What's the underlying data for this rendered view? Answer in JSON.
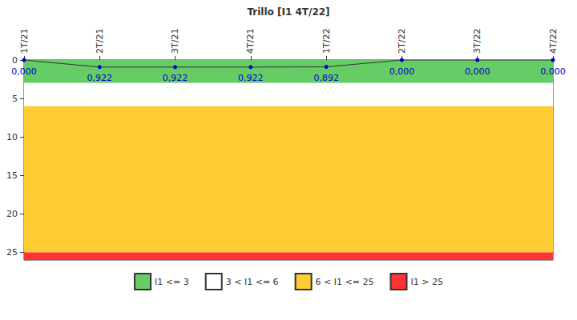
{
  "chart_data": {
    "type": "line",
    "title": "Trillo [I1 4T/22]",
    "categories": [
      "1T/21",
      "2T/21",
      "3T/21",
      "4T/21",
      "1T/22",
      "2T/22",
      "3T/22",
      "4T/22"
    ],
    "values": [
      0.0,
      0.922,
      0.922,
      0.922,
      0.892,
      0.0,
      0.0,
      0.0
    ],
    "value_labels": [
      "0,000",
      "0,922",
      "0,922",
      "0,922",
      "0,892",
      "0,000",
      "0,000",
      "0,000"
    ],
    "color": "#0000cc",
    "data_labels": true,
    "ylim": [
      0,
      26
    ],
    "yticks": [
      0,
      5,
      10,
      15,
      20,
      25
    ],
    "grid": false,
    "legend": "bottom",
    "bands": [
      {
        "label": "I1 <= 3",
        "from": 0,
        "to": 3,
        "color": "#66cc66"
      },
      {
        "label": "3 < I1 <= 6",
        "from": 3,
        "to": 6,
        "color": "#ffffff"
      },
      {
        "label": "6 < I1 <= 25",
        "from": 6,
        "to": 25,
        "color": "#ffcc33"
      },
      {
        "label": "I1 > 25",
        "from": 25,
        "to": 26,
        "color": "#ff3333"
      }
    ]
  }
}
